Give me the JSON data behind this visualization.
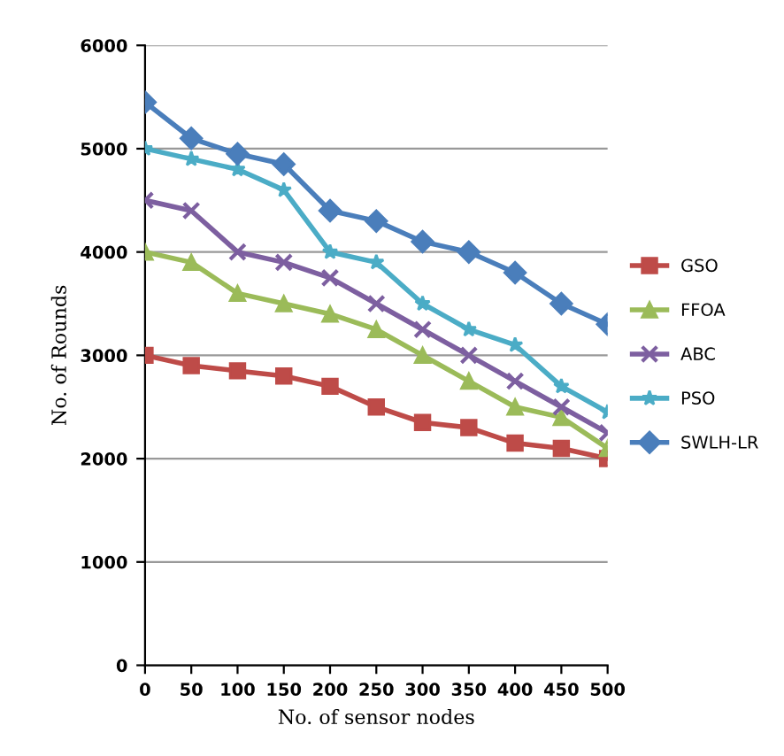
{
  "chart_data": {
    "type": "line",
    "xlabel": "No. of sensor nodes",
    "ylabel": "No. of Rounds",
    "x": [
      0,
      50,
      100,
      150,
      200,
      250,
      300,
      350,
      400,
      450,
      500
    ],
    "xlim": [
      0,
      500
    ],
    "xticks": [
      0,
      50,
      100,
      150,
      200,
      250,
      300,
      350,
      400,
      450,
      500
    ],
    "ylim": [
      0,
      6000
    ],
    "yticks": [
      0,
      1000,
      2000,
      3000,
      4000,
      5000,
      6000
    ],
    "grid": "y",
    "legend": "right",
    "line_style": "solid",
    "series": [
      {
        "name": "GSO",
        "color": "#be4b48",
        "marker": "square",
        "values": [
          3000,
          2900,
          2850,
          2800,
          2700,
          2500,
          2350,
          2300,
          2150,
          2100,
          2000
        ]
      },
      {
        "name": "FFOA",
        "color": "#9bbb59",
        "marker": "triangle",
        "values": [
          4000,
          3900,
          3600,
          3500,
          3400,
          3250,
          3000,
          2750,
          2500,
          2400,
          2100
        ]
      },
      {
        "name": "ABC",
        "color": "#7d5fa0",
        "marker": "cross",
        "values": [
          4500,
          4400,
          4000,
          3900,
          3750,
          3500,
          3250,
          3000,
          2750,
          2500,
          2250
        ]
      },
      {
        "name": "PSO",
        "color": "#4bacc6",
        "marker": "star",
        "values": [
          5000,
          4900,
          4800,
          4600,
          4000,
          3900,
          3500,
          3250,
          3100,
          2700,
          2450
        ]
      },
      {
        "name": "SWLH-LR",
        "color": "#4a7ebb",
        "marker": "diamond",
        "values": [
          5450,
          5100,
          4950,
          4850,
          4400,
          4300,
          4100,
          4000,
          3800,
          3500,
          3300
        ]
      }
    ]
  }
}
